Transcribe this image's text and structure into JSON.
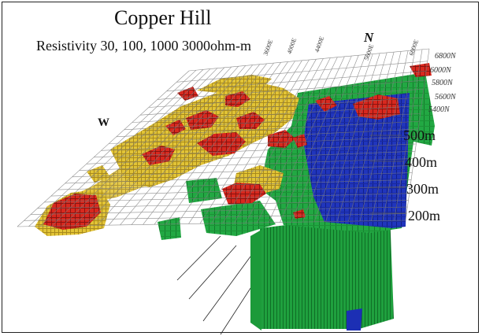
{
  "figure": {
    "title": "Copper Hill",
    "subtitle": "Resistivity 30, 100, 1000 3000ohm-m"
  },
  "compass": {
    "north": "N",
    "west": "W"
  },
  "depth_labels": [
    "500m",
    "400m",
    "300m",
    "200m"
  ],
  "northing_labels": [
    "6800N",
    "6000N",
    "5800N",
    "5600N",
    "5400N",
    "5400N"
  ],
  "easting_ticks": [
    "3600E",
    "4000E",
    "4400E",
    "5600E",
    "6000E"
  ],
  "resistivity_colors": {
    "30": "#d8201a",
    "100": "#e3c431",
    "1000": "#1f9e3b",
    "3000": "#1c2fb4"
  }
}
